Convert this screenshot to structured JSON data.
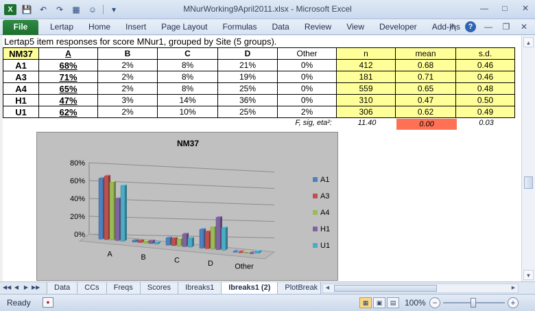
{
  "window": {
    "title": "MNurWorking9April2011.xlsx - Microsoft Excel",
    "app_icon_label": "X"
  },
  "ribbon": {
    "file_label": "File",
    "tabs": [
      "Lertap",
      "Home",
      "Insert",
      "Page Layout",
      "Formulas",
      "Data",
      "Review",
      "View",
      "Developer",
      "Add-Ins"
    ]
  },
  "sheet": {
    "heading": "Lertap5 item responses for score MNur1, grouped by Site (5 groups).",
    "table": {
      "headers": [
        "NM37",
        "A",
        "B",
        "C",
        "D",
        "Other",
        "n",
        "mean",
        "s.d."
      ],
      "rows": [
        {
          "label": "A1",
          "cells": [
            "68%",
            "2%",
            "8%",
            "21%",
            "0%",
            "412",
            "0.68",
            "0.46"
          ]
        },
        {
          "label": "A3",
          "cells": [
            "71%",
            "2%",
            "8%",
            "19%",
            "0%",
            "181",
            "0.71",
            "0.46"
          ]
        },
        {
          "label": "A4",
          "cells": [
            "65%",
            "2%",
            "8%",
            "25%",
            "0%",
            "559",
            "0.65",
            "0.48"
          ]
        },
        {
          "label": "H1",
          "cells": [
            "47%",
            "3%",
            "14%",
            "36%",
            "0%",
            "310",
            "0.47",
            "0.50"
          ]
        },
        {
          "label": "U1",
          "cells": [
            "62%",
            "2%",
            "10%",
            "25%",
            "2%",
            "306",
            "0.62",
            "0.49"
          ]
        }
      ]
    },
    "stats_row": {
      "label": "F, sig, eta²:",
      "f": "11.40",
      "sig": "0.00",
      "eta2": "0.03",
      "sig_color": "#ff7155"
    }
  },
  "chart_data": {
    "type": "bar",
    "title": "NM37",
    "categories": [
      "A",
      "B",
      "C",
      "D",
      "Other"
    ],
    "series": [
      {
        "name": "A1",
        "values": [
          68,
          2,
          8,
          21,
          0
        ],
        "color": "#4f81bd"
      },
      {
        "name": "A3",
        "values": [
          71,
          2,
          8,
          19,
          0
        ],
        "color": "#c0504d"
      },
      {
        "name": "A4",
        "values": [
          65,
          2,
          8,
          25,
          0
        ],
        "color": "#9bbb59"
      },
      {
        "name": "H1",
        "values": [
          47,
          3,
          14,
          36,
          0
        ],
        "color": "#8064a2"
      },
      {
        "name": "U1",
        "values": [
          62,
          2,
          10,
          25,
          2
        ],
        "color": "#4bacc6"
      }
    ],
    "y_ticks": [
      "0%",
      "20%",
      "40%",
      "60%",
      "80%"
    ],
    "ylim": [
      0,
      80
    ],
    "legend": "right",
    "grid": true
  },
  "sheet_tabs": {
    "tabs": [
      "Data",
      "CCs",
      "Freqs",
      "Scores",
      "Ibreaks1",
      "Ibreaks1 (2)",
      "PlotBreak"
    ],
    "active": "Ibreaks1 (2)"
  },
  "status": {
    "ready": "Ready",
    "zoom": "100%"
  }
}
